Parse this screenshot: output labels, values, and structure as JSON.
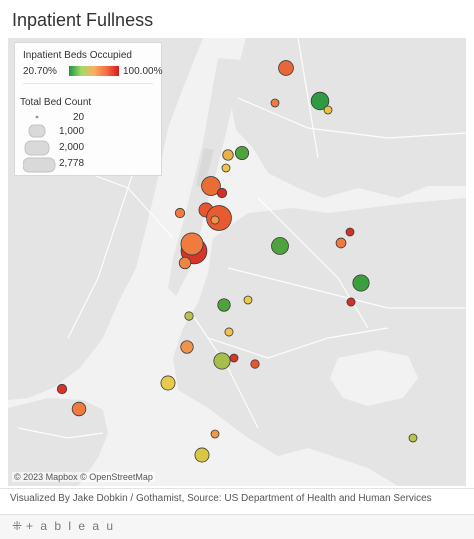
{
  "title": "Inpatient Fullness",
  "legend": {
    "color_title": "Inpatient Beds Occupied",
    "color_min": "20.70%",
    "color_max": "100.00%",
    "colors": [
      "#1a9641",
      "#a6d96a",
      "#fdae61",
      "#f46d43",
      "#d7191c"
    ],
    "size_title": "Total Bed Count",
    "size_items": [
      "20",
      "1,000",
      "2,000",
      "2,778"
    ]
  },
  "attribution": "© 2023 Mapbox  © OpenStreetMap",
  "source": "Visualized By Jake Dobkin / Gothamist, Source: US Department of Health and Human Services",
  "brand": {
    "mark": "⁜",
    "word": "+ a b l e a u"
  },
  "hospitals": [
    {
      "occupancy": 0.86,
      "beds": 500,
      "color": "#e8663a"
    },
    {
      "occupancy": 0.22,
      "beds": 700,
      "color": "#2e9a41"
    },
    {
      "occupancy": 0.86,
      "beds": 120,
      "color": "#ef7b3f"
    },
    {
      "occupancy": 0.6,
      "beds": 40,
      "color": "#e7c244"
    },
    {
      "occupancy": 0.25,
      "beds": 400,
      "color": "#4ea43c"
    },
    {
      "occupancy": 0.72,
      "beds": 250,
      "color": "#ebb04a"
    },
    {
      "occupancy": 0.75,
      "beds": 80,
      "color": "#f2c04b"
    },
    {
      "occupancy": 0.88,
      "beds": 800,
      "color": "#ea6d36"
    },
    {
      "occupancy": 0.98,
      "beds": 200,
      "color": "#d43028"
    },
    {
      "occupancy": 0.9,
      "beds": 450,
      "color": "#e9562e"
    },
    {
      "occupancy": 0.88,
      "beds": 200,
      "color": "#ef7b3f"
    },
    {
      "occupancy": 0.92,
      "beds": 1400,
      "color": "#e85a30"
    },
    {
      "occupancy": 0.8,
      "beds": 150,
      "color": "#ef9448"
    },
    {
      "occupancy": 0.95,
      "beds": 1500,
      "color": "#d8342a"
    },
    {
      "occupancy": 0.84,
      "beds": 1100,
      "color": "#ef7b3f"
    },
    {
      "occupancy": 0.88,
      "beds": 300,
      "color": "#ee8642"
    },
    {
      "occupancy": 0.24,
      "beds": 650,
      "color": "#4ea43c"
    },
    {
      "occupancy": 0.86,
      "beds": 220,
      "color": "#ef7b3f"
    },
    {
      "occupancy": 0.97,
      "beds": 80,
      "color": "#d43028"
    },
    {
      "occupancy": 0.24,
      "beds": 600,
      "color": "#3b9f3d"
    },
    {
      "occupancy": 0.96,
      "beds": 150,
      "color": "#d43028"
    },
    {
      "occupancy": 0.26,
      "beds": 350,
      "color": "#4ea43c"
    },
    {
      "occupancy": 0.7,
      "beds": 80,
      "color": "#e9c94c"
    },
    {
      "occupancy": 0.55,
      "beds": 160,
      "color": "#b9c34a"
    },
    {
      "occupancy": 0.72,
      "beds": 150,
      "color": "#f2c04b"
    },
    {
      "occupancy": 0.82,
      "beds": 350,
      "color": "#ef9448"
    },
    {
      "occupancy": 0.5,
      "beds": 600,
      "color": "#a7be4a"
    },
    {
      "occupancy": 0.96,
      "beds": 60,
      "color": "#d8342a"
    },
    {
      "occupancy": 0.9,
      "beds": 160,
      "color": "#e9562e"
    },
    {
      "occupancy": 0.7,
      "beds": 450,
      "color": "#e9c94c"
    },
    {
      "occupancy": 0.97,
      "beds": 200,
      "color": "#d8342a"
    },
    {
      "occupancy": 0.87,
      "beds": 420,
      "color": "#ef7b3f"
    },
    {
      "occupancy": 0.7,
      "beds": 450,
      "color": "#d9c642"
    },
    {
      "occupancy": 0.85,
      "beds": 100,
      "color": "#f0994a"
    },
    {
      "occupancy": 0.5,
      "beds": 120,
      "color": "#b9c34a"
    }
  ]
}
